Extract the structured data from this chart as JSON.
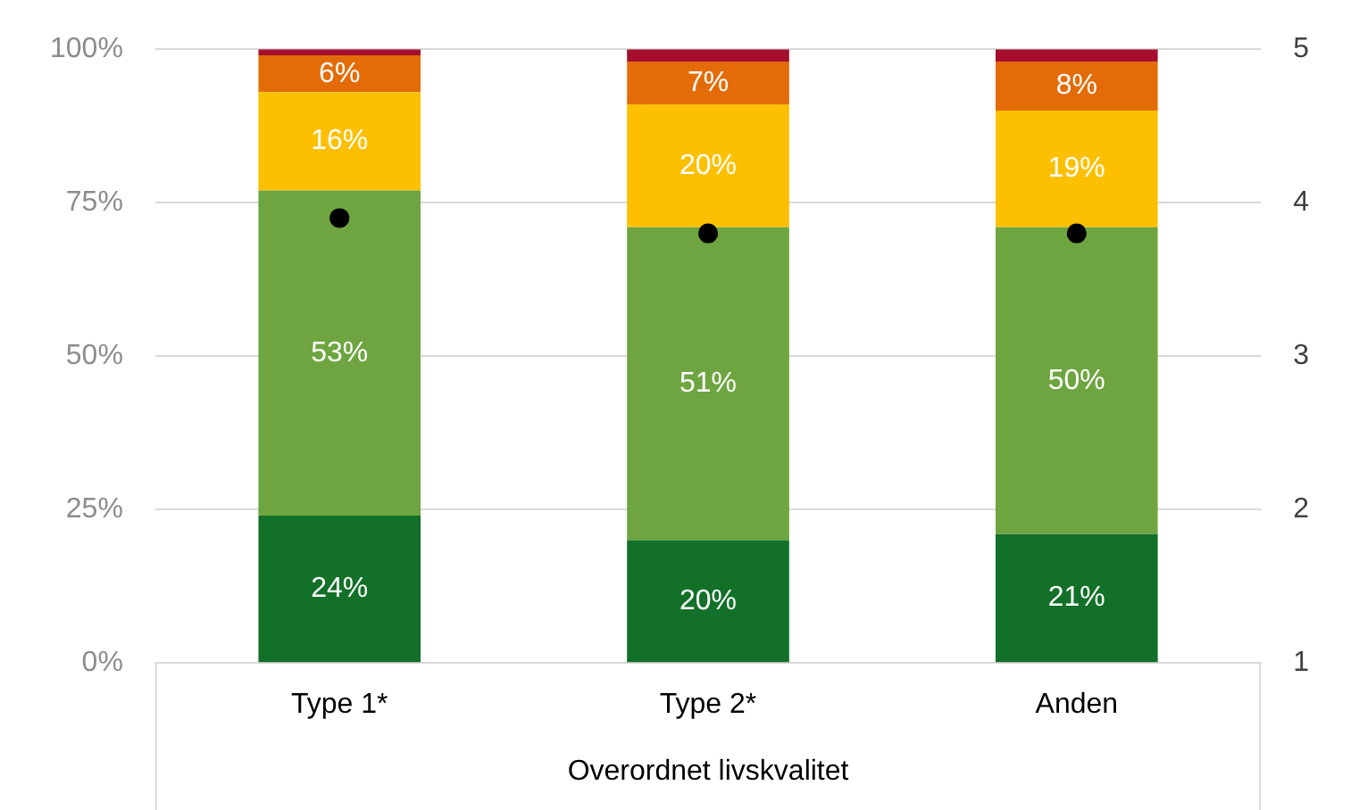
{
  "chart_data": {
    "type": "bar",
    "stacked": true,
    "categories": [
      "Type 1*",
      "Type 2*",
      "Anden"
    ],
    "xlabel": "Overordnet livskvalitet",
    "series": [
      {
        "color": "#137028",
        "values": [
          24,
          20,
          21
        ],
        "value_labels": [
          "24%",
          "20%",
          "21%"
        ]
      },
      {
        "color": "#6ea540",
        "values": [
          53,
          51,
          50
        ],
        "value_labels": [
          "53%",
          "51%",
          "50%"
        ]
      },
      {
        "color": "#fcc000",
        "values": [
          16,
          20,
          19
        ],
        "value_labels": [
          "16%",
          "20%",
          "19%"
        ]
      },
      {
        "color": "#e36c09",
        "values": [
          6,
          7,
          8
        ],
        "value_labels": [
          "6%",
          "7%",
          "8%"
        ]
      },
      {
        "color": "#a50f2d",
        "values": [
          1,
          2,
          2
        ]
      },
      {
        "type": "scatter",
        "axis": "y2",
        "color": "#000000",
        "x": [
          "Type 1*",
          "Type 2*",
          "Anden"
        ],
        "values": [
          3.9,
          3.8,
          3.8
        ],
        "marker": "circle"
      }
    ],
    "ylim": [
      0,
      100
    ],
    "yticks": [
      {
        "value": 0,
        "label": "0%"
      },
      {
        "value": 25,
        "label": "25%"
      },
      {
        "value": 50,
        "label": "50%"
      },
      {
        "value": 75,
        "label": "75%"
      },
      {
        "value": 100,
        "label": "100%"
      }
    ],
    "y2lim": [
      1,
      5
    ],
    "y2ticks": [
      1,
      2,
      3,
      4,
      5
    ],
    "grid": "y",
    "legend": false
  }
}
